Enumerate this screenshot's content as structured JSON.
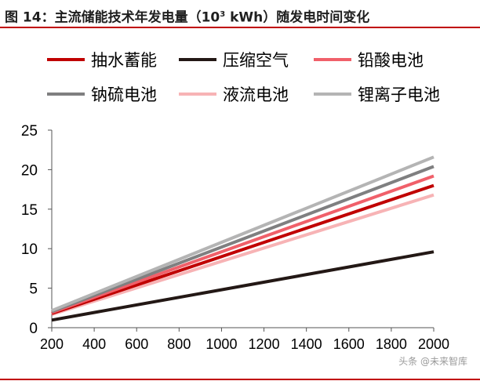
{
  "title": {
    "prefix": "图 14：主流储能技术年发电量（10",
    "sup": "3",
    "suffix": " kWh）随发电时间变化"
  },
  "watermark": "头条 @未来智库",
  "chart_data": {
    "type": "line",
    "title": "主流储能技术年发电量（10³ kWh）随发电时间变化",
    "xlabel": "",
    "ylabel": "",
    "x": [
      200,
      2000
    ],
    "xlim": [
      200,
      2000
    ],
    "xticks": [
      "200",
      "400",
      "600",
      "800",
      "1000",
      "1200",
      "1400",
      "1600",
      "1800",
      "2000"
    ],
    "ylim": [
      0,
      25
    ],
    "yticks": [
      "0",
      "5",
      "10",
      "15",
      "20",
      "25"
    ],
    "grid": false,
    "legend_position": "top",
    "series": [
      {
        "name": "抽水蓄能",
        "values": [
          1.8,
          18.0
        ],
        "color": "#c00000"
      },
      {
        "name": "压缩空气",
        "values": [
          0.96,
          9.6
        ],
        "color": "#231815"
      },
      {
        "name": "铅酸电池",
        "values": [
          1.92,
          19.2
        ],
        "color": "#f0606a"
      },
      {
        "name": "钠硫电池",
        "values": [
          2.04,
          20.4
        ],
        "color": "#7f7f80"
      },
      {
        "name": "液流电池",
        "values": [
          1.68,
          16.8
        ],
        "color": "#f7b3b5"
      },
      {
        "name": "锂离子电池",
        "values": [
          2.16,
          21.6
        ],
        "color": "#b4b4b4"
      }
    ]
  }
}
